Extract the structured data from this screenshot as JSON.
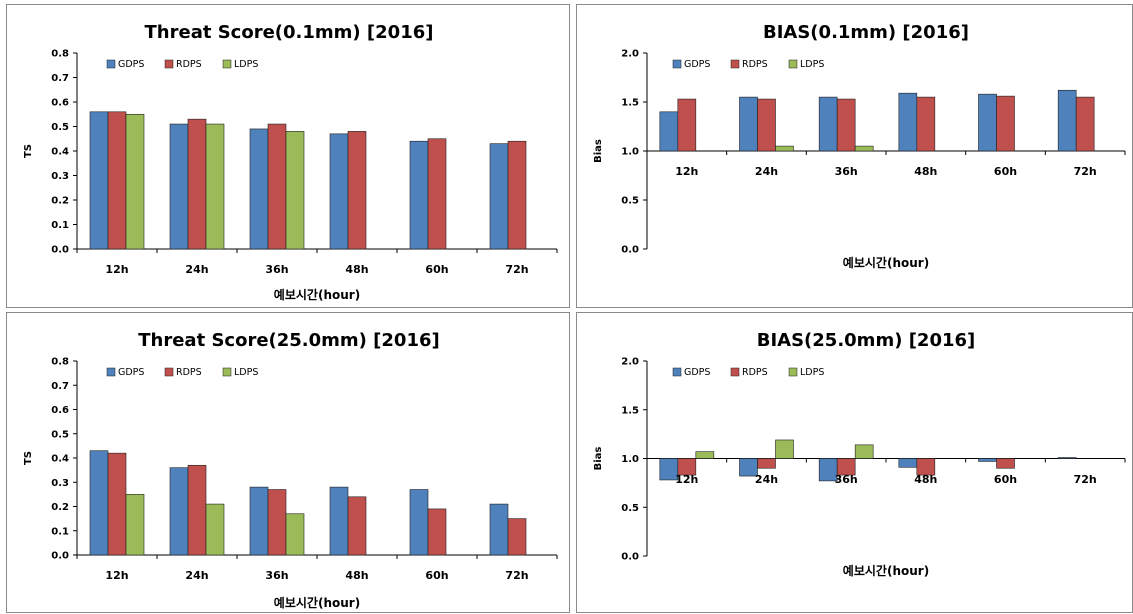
{
  "colors": {
    "GDPS": "#4F81BD",
    "RDPS": "#C0504D",
    "LDPS": "#9BBB59",
    "bar_edge": "#1f1f1f"
  },
  "chart_data": [
    {
      "type": "bar",
      "title": "Threat Score(0.1mm) [2016]",
      "xlabel": "예보시간(hour)",
      "ylabel": "TS",
      "ylim": [
        0,
        0.8
      ],
      "yticks": [
        "0.0",
        "0.1",
        "0.2",
        "0.3",
        "0.4",
        "0.5",
        "0.6",
        "0.7",
        "0.8"
      ],
      "grid": false,
      "legend": "top-left",
      "categories": [
        "12h",
        "24h",
        "36h",
        "48h",
        "60h",
        "72h"
      ],
      "series": [
        {
          "name": "GDPS",
          "values": [
            0.56,
            0.51,
            0.49,
            0.47,
            0.44,
            0.43
          ]
        },
        {
          "name": "RDPS",
          "values": [
            0.56,
            0.53,
            0.51,
            0.48,
            0.45,
            0.44
          ]
        },
        {
          "name": "LDPS",
          "values": [
            0.55,
            0.51,
            0.48,
            null,
            null,
            null
          ]
        }
      ]
    },
    {
      "type": "bar",
      "title": "BIAS(0.1mm) [2016]",
      "xlabel": "예보시간(hour)",
      "ylabel": "Bias",
      "ylim": [
        0,
        2.0
      ],
      "baseline": 1.0,
      "yticks": [
        "0.0",
        "0.5",
        "1.0",
        "1.5",
        "2.0"
      ],
      "grid": false,
      "legend": "top-left",
      "categories": [
        "12h",
        "24h",
        "36h",
        "48h",
        "60h",
        "72h"
      ],
      "series": [
        {
          "name": "GDPS",
          "values": [
            1.4,
            1.55,
            1.55,
            1.59,
            1.58,
            1.62
          ]
        },
        {
          "name": "RDPS",
          "values": [
            1.53,
            1.53,
            1.53,
            1.55,
            1.56,
            1.55
          ]
        },
        {
          "name": "LDPS",
          "values": [
            null,
            1.05,
            1.05,
            null,
            null,
            null
          ]
        }
      ]
    },
    {
      "type": "bar",
      "title": "Threat Score(25.0mm) [2016]",
      "xlabel": "예보시간(hour)",
      "ylabel": "TS",
      "ylim": [
        0,
        0.8
      ],
      "yticks": [
        "0.0",
        "0.1",
        "0.2",
        "0.3",
        "0.4",
        "0.5",
        "0.6",
        "0.7",
        "0.8"
      ],
      "grid": false,
      "legend": "top-left",
      "categories": [
        "12h",
        "24h",
        "36h",
        "48h",
        "60h",
        "72h"
      ],
      "series": [
        {
          "name": "GDPS",
          "values": [
            0.43,
            0.36,
            0.28,
            0.28,
            0.27,
            0.21
          ]
        },
        {
          "name": "RDPS",
          "values": [
            0.42,
            0.37,
            0.27,
            0.24,
            0.19,
            0.15
          ]
        },
        {
          "name": "LDPS",
          "values": [
            0.25,
            0.21,
            0.17,
            null,
            null,
            null
          ]
        }
      ]
    },
    {
      "type": "bar",
      "title": "BIAS(25.0mm) [2016]",
      "xlabel": "예보시간(hour)",
      "ylabel": "Bias",
      "ylim": [
        0,
        2.0
      ],
      "baseline": 1.0,
      "yticks": [
        "0.0",
        "0.5",
        "1.0",
        "1.5",
        "2.0"
      ],
      "grid": false,
      "legend": "top-left",
      "categories": [
        "12h",
        "24h",
        "36h",
        "48h",
        "60h",
        "72h"
      ],
      "series": [
        {
          "name": "GDPS",
          "values": [
            0.78,
            0.82,
            0.77,
            0.91,
            0.97,
            1.01
          ]
        },
        {
          "name": "RDPS",
          "values": [
            0.83,
            0.9,
            0.83,
            0.83,
            0.9,
            null
          ]
        },
        {
          "name": "LDPS",
          "values": [
            1.07,
            1.19,
            1.14,
            null,
            null,
            null
          ]
        }
      ]
    }
  ]
}
